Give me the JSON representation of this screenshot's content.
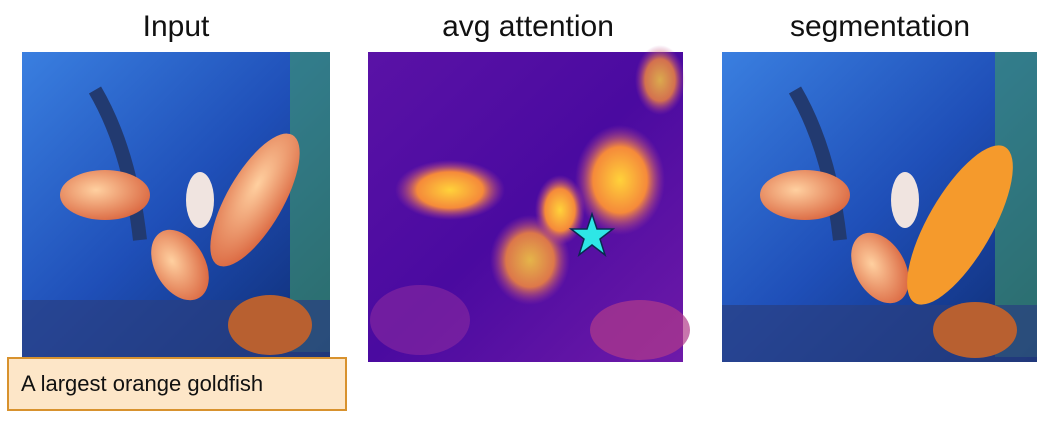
{
  "panels": [
    {
      "title": "Input"
    },
    {
      "title": "avg attention"
    },
    {
      "title": "segmentation"
    }
  ],
  "caption": "A largest orange goldfish"
}
